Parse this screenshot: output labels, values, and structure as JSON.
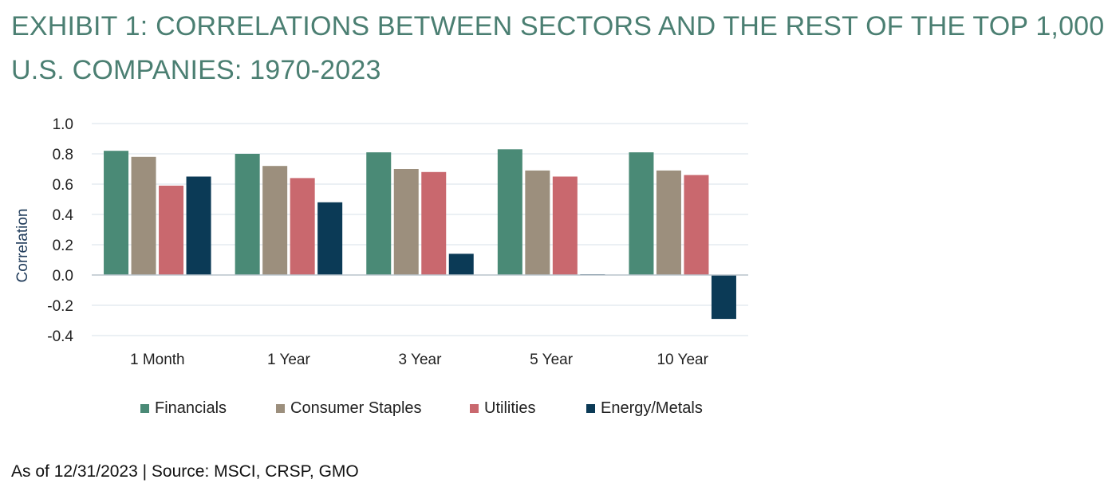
{
  "title": {
    "line1": "EXHIBIT 1: CORRELATIONS BETWEEN SECTORS AND THE REST OF THE TOP 1,000",
    "line2": "U.S. COMPANIES: 1970-2023"
  },
  "source": "As of 12/31/2023 | Source: MSCI, CRSP, GMO",
  "colors": {
    "Financials": "#4a8a76",
    "Consumer Staples": "#9c8f7d",
    "Utilities": "#c9686e",
    "Energy/Metals": "#0b3a56"
  },
  "chart_data": {
    "type": "bar",
    "ylabel": "Correlation",
    "xlabel": "",
    "ylim": [
      -0.4,
      1.0
    ],
    "yticks": [
      "1.0",
      "0.8",
      "0.6",
      "0.4",
      "0.2",
      "0.0",
      "-0.2",
      "-0.4"
    ],
    "ytick_values": [
      1.0,
      0.8,
      0.6,
      0.4,
      0.2,
      0.0,
      -0.2,
      -0.4
    ],
    "grid": true,
    "legend_position": "bottom",
    "categories": [
      "1 Month",
      "1 Year",
      "3 Year",
      "5 Year",
      "10 Year"
    ],
    "series": [
      {
        "name": "Financials",
        "values": [
          0.82,
          0.8,
          0.81,
          0.83,
          0.81
        ]
      },
      {
        "name": "Consumer Staples",
        "values": [
          0.78,
          0.72,
          0.7,
          0.69,
          0.69
        ]
      },
      {
        "name": "Utilities",
        "values": [
          0.59,
          0.64,
          0.68,
          0.65,
          0.66
        ]
      },
      {
        "name": "Energy/Metals",
        "values": [
          0.65,
          0.48,
          0.14,
          0.005,
          -0.29
        ]
      }
    ]
  }
}
